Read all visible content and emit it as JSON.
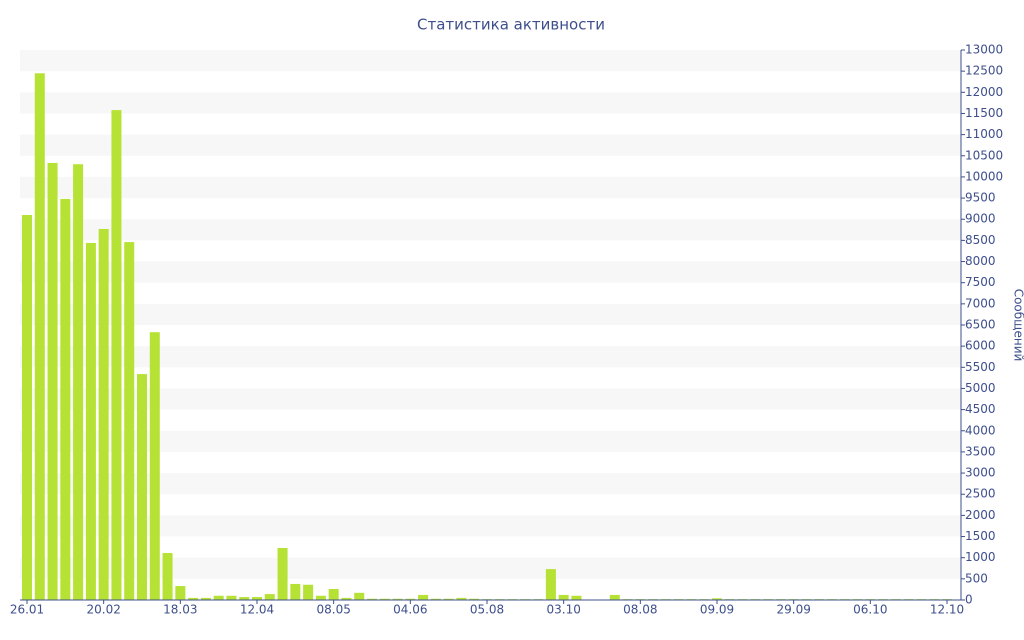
{
  "chart_data": {
    "type": "bar",
    "title": "Статистика активности",
    "y_axis_label": "Сообщений",
    "color": "#b5e234",
    "categories": [
      "26.01",
      null,
      null,
      null,
      null,
      null,
      "20.02",
      null,
      null,
      null,
      null,
      null,
      "18.03",
      null,
      null,
      null,
      null,
      null,
      "12.04",
      null,
      null,
      null,
      null,
      null,
      "08.05",
      null,
      null,
      null,
      null,
      null,
      "04.06",
      null,
      null,
      null,
      null,
      null,
      "05.08",
      null,
      null,
      null,
      null,
      null,
      "03.10",
      null,
      null,
      null,
      null,
      null,
      "08.08",
      null,
      null,
      null,
      null,
      null,
      "09.09",
      null,
      null,
      null,
      null,
      null,
      "29.09",
      null,
      null,
      null,
      null,
      null,
      "06.10",
      null,
      null,
      null,
      null,
      null,
      "12.10"
    ],
    "values": [
      9100,
      12450,
      10330,
      9480,
      10300,
      8440,
      8770,
      11580,
      8460,
      5340,
      6330,
      1110,
      330,
      50,
      50,
      100,
      100,
      70,
      70,
      140,
      1230,
      380,
      360,
      100,
      260,
      50,
      170,
      30,
      30,
      30,
      30,
      120,
      30,
      30,
      50,
      30,
      20,
      20,
      20,
      20,
      20,
      730,
      120,
      100,
      10,
      10,
      120,
      20,
      20,
      20,
      20,
      20,
      20,
      20,
      40,
      20,
      20,
      20,
      20,
      20,
      20,
      20,
      20,
      20,
      20,
      20,
      20,
      20,
      20,
      20,
      20,
      20,
      20
    ],
    "ylim": [
      0,
      13000
    ],
    "yticks": [
      0,
      500,
      1000,
      1500,
      2000,
      2500,
      3000,
      3500,
      4000,
      4500,
      5000,
      5500,
      6000,
      6500,
      7000,
      7500,
      8000,
      8500,
      9000,
      9500,
      10000,
      10500,
      11000,
      11500,
      12000,
      12500,
      13000
    ],
    "grid": "bands"
  }
}
